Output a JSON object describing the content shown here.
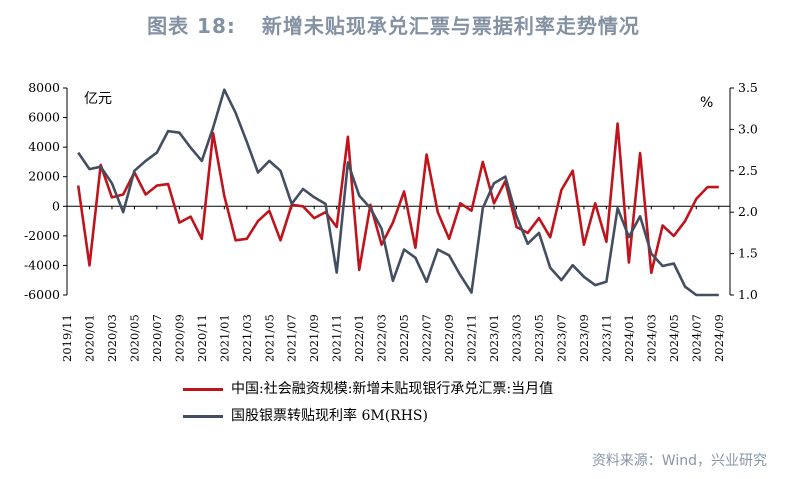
{
  "header": {
    "label": "图表 18:",
    "text": "新增未贴现承兑汇票与票据利率走势情况"
  },
  "source": "资料来源：Wind，兴业研究",
  "chart_data": {
    "type": "line",
    "left_unit": "亿元",
    "right_unit": "%",
    "left_ylim": [
      -6000,
      8000
    ],
    "left_ticks": [
      8000,
      6000,
      4000,
      2000,
      0,
      -2000,
      -4000,
      -6000
    ],
    "right_ylim": [
      1.0,
      3.5
    ],
    "right_ticks": [
      3.5,
      3.0,
      2.5,
      2.0,
      1.5,
      1.0
    ],
    "x_tick_labels": [
      "2019/11",
      "2020/01",
      "2020/03",
      "2020/05",
      "2020/07",
      "2020/09",
      "2020/11",
      "2021/01",
      "2021/03",
      "2021/05",
      "2021/07",
      "2021/09",
      "2021/11",
      "2022/01",
      "2022/03",
      "2022/05",
      "2022/07",
      "2022/09",
      "2022/11",
      "2023/01",
      "2023/03",
      "2023/05",
      "2023/07",
      "2023/09",
      "2023/11",
      "2024/01",
      "2024/03",
      "2024/05",
      "2024/07",
      "2024/09"
    ],
    "x": [
      "2019/12",
      "2020/01",
      "2020/02",
      "2020/03",
      "2020/04",
      "2020/05",
      "2020/06",
      "2020/07",
      "2020/08",
      "2020/09",
      "2020/10",
      "2020/11",
      "2020/12",
      "2021/01",
      "2021/02",
      "2021/03",
      "2021/04",
      "2021/05",
      "2021/06",
      "2021/07",
      "2021/08",
      "2021/09",
      "2021/10",
      "2021/11",
      "2021/12",
      "2022/01",
      "2022/02",
      "2022/03",
      "2022/04",
      "2022/05",
      "2022/06",
      "2022/07",
      "2022/08",
      "2022/09",
      "2022/10",
      "2022/11",
      "2022/12",
      "2023/01",
      "2023/02",
      "2023/03",
      "2023/04",
      "2023/05",
      "2023/06",
      "2023/07",
      "2023/08",
      "2023/09",
      "2023/10",
      "2023/11",
      "2023/12",
      "2024/01",
      "2024/02",
      "2024/03",
      "2024/04",
      "2024/05",
      "2024/06",
      "2024/07",
      "2024/08",
      "2024/09"
    ],
    "series": [
      {
        "name": "中国:社会融资规模:新增未贴现银行承兑汇票:当月值",
        "axis": "left",
        "color": "#c0141c",
        "values": [
          1400,
          -4000,
          2800,
          600,
          800,
          2300,
          800,
          1400,
          1500,
          -1100,
          -700,
          -2200,
          4950,
          700,
          -2300,
          -2200,
          -1000,
          -300,
          -2300,
          100,
          0,
          -800,
          -400,
          -1400,
          4700,
          -4300,
          100,
          -2600,
          -1100,
          1000,
          -2800,
          3500,
          -400,
          -2200,
          200,
          -300,
          3000,
          200,
          1700,
          -1400,
          -1800,
          -800,
          -2100,
          1100,
          2400,
          -2600,
          200,
          -2400,
          5600,
          -3800,
          3600,
          -4500,
          -1300,
          -2000,
          -1000,
          500,
          1300,
          1300
        ]
      },
      {
        "name": "国股银票转贴现利率 6M(RHS)",
        "axis": "right",
        "color": "#434f61",
        "values": [
          2.72,
          2.52,
          2.55,
          2.35,
          2.0,
          2.5,
          2.62,
          2.72,
          2.98,
          2.96,
          2.78,
          2.62,
          3.02,
          3.48,
          3.2,
          2.85,
          2.48,
          2.62,
          2.5,
          2.1,
          2.28,
          2.18,
          2.1,
          1.27,
          2.6,
          2.2,
          2.05,
          1.8,
          1.17,
          1.55,
          1.45,
          1.16,
          1.55,
          1.48,
          1.24,
          1.03,
          2.05,
          2.35,
          2.43,
          1.95,
          1.62,
          1.75,
          1.33,
          1.18,
          1.36,
          1.22,
          1.12,
          1.16,
          2.05,
          1.7,
          1.95,
          1.5,
          1.35,
          1.38,
          1.1,
          1.0,
          1.0,
          1.0
        ]
      }
    ]
  }
}
